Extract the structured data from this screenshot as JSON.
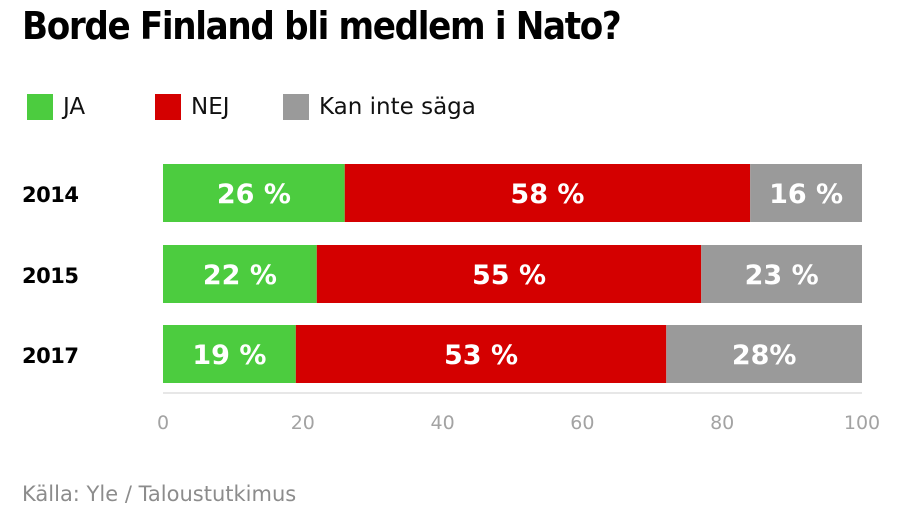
{
  "chart_data": {
    "type": "bar",
    "orientation": "horizontal",
    "stacked": true,
    "title": "Borde Finland bli medlem i Nato?",
    "categories": [
      "2014",
      "2015",
      "2017"
    ],
    "series": [
      {
        "name": "JA",
        "color": "#4ccc3f",
        "values": [
          26,
          22,
          19
        ],
        "labels": [
          "26 %",
          "22 %",
          "19 %"
        ]
      },
      {
        "name": "NEJ",
        "color": "#d40000",
        "values": [
          58,
          55,
          53
        ],
        "labels": [
          "58 %",
          "55 %",
          "53 %"
        ]
      },
      {
        "name": "Kan inte säga",
        "color": "#9a9a9a",
        "values": [
          16,
          23,
          28
        ],
        "labels": [
          "16 %",
          "23 %",
          "28%"
        ]
      }
    ],
    "xlim": [
      0,
      100
    ],
    "xticks": [
      "0",
      "20",
      "40",
      "60",
      "80",
      "100"
    ],
    "legend_position": "top-left",
    "grid": false
  },
  "source": "Källa: Yle / Taloustutkimus"
}
